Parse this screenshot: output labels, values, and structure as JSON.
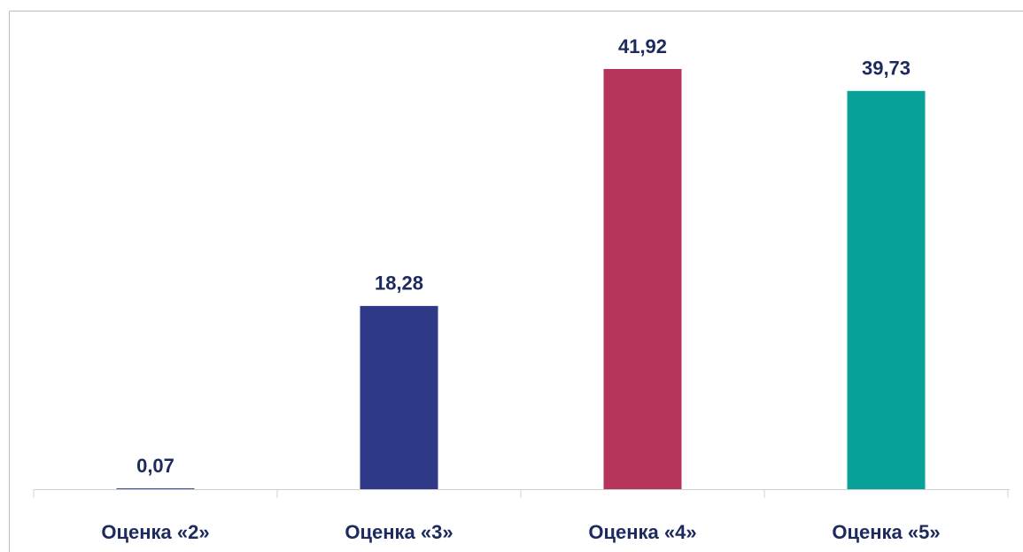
{
  "chart_data": {
    "type": "bar",
    "categories": [
      "Оценка «2»",
      "Оценка «3»",
      "Оценка «4»",
      "Оценка «5»"
    ],
    "values": [
      0.07,
      18.28,
      41.92,
      39.73
    ],
    "value_labels": [
      "0,07",
      "18,28",
      "41,92",
      "39,73"
    ],
    "colors": [
      "#3d4f9e",
      "#2e3a87",
      "#b5365a",
      "#07a199"
    ]
  }
}
